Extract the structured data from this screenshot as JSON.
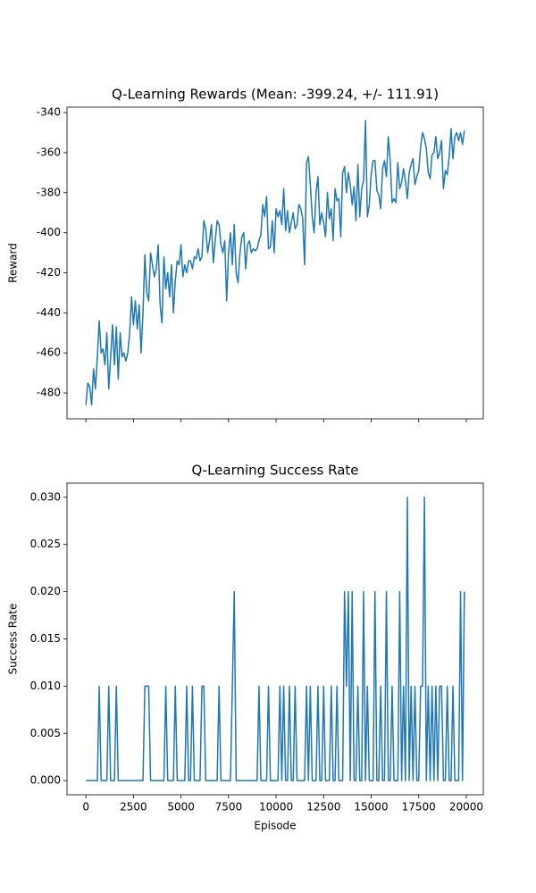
{
  "chart_data": [
    {
      "type": "line",
      "title": "Q-Learning Rewards (Mean: -399.24, +/- 111.91)",
      "ylabel": "Reward",
      "color": "#1f77b4",
      "x": [
        0,
        100,
        200,
        300,
        400,
        500,
        600,
        700,
        800,
        900,
        1000,
        1100,
        1200,
        1300,
        1400,
        1500,
        1600,
        1700,
        1800,
        1900,
        2000,
        2100,
        2200,
        2300,
        2400,
        2500,
        2600,
        2700,
        2800,
        2900,
        3000,
        3100,
        3200,
        3300,
        3400,
        3500,
        3600,
        3700,
        3800,
        3900,
        4000,
        4100,
        4200,
        4300,
        4400,
        4500,
        4600,
        4700,
        4800,
        4900,
        5000,
        5100,
        5200,
        5300,
        5400,
        5500,
        5600,
        5700,
        5800,
        5900,
        6000,
        6100,
        6200,
        6300,
        6400,
        6500,
        6600,
        6700,
        6800,
        6900,
        7000,
        7100,
        7200,
        7300,
        7400,
        7500,
        7600,
        7700,
        7800,
        7900,
        8000,
        8100,
        8200,
        8300,
        8400,
        8500,
        8600,
        8700,
        8800,
        8900,
        9000,
        9100,
        9200,
        9300,
        9400,
        9500,
        9600,
        9700,
        9800,
        9900,
        10000,
        10100,
        10200,
        10300,
        10400,
        10500,
        10600,
        10700,
        10800,
        10900,
        11000,
        11100,
        11200,
        11300,
        11400,
        11500,
        11600,
        11700,
        11800,
        11900,
        12000,
        12100,
        12200,
        12300,
        12400,
        12500,
        12600,
        12700,
        12800,
        12900,
        13000,
        13100,
        13200,
        13300,
        13400,
        13500,
        13600,
        13700,
        13800,
        13900,
        14000,
        14100,
        14200,
        14300,
        14400,
        14500,
        14600,
        14700,
        14800,
        14900,
        15000,
        15100,
        15200,
        15300,
        15400,
        15500,
        15600,
        15700,
        15800,
        15900,
        16000,
        16100,
        16200,
        16300,
        16400,
        16500,
        16600,
        16700,
        16800,
        16900,
        17000,
        17100,
        17200,
        17300,
        17400,
        17500,
        17600,
        17700,
        17800,
        17900,
        18000,
        18100,
        18200,
        18300,
        18400,
        18500,
        18600,
        18700,
        18800,
        18900,
        19000,
        19100,
        19200,
        19300,
        19400,
        19500,
        19600,
        19700,
        19800,
        19900
      ],
      "values": [
        -486,
        -475,
        -477,
        -486,
        -468,
        -478,
        -462,
        -444,
        -460,
        -458,
        -466,
        -450,
        -478,
        -462,
        -446,
        -466,
        -447,
        -473,
        -450,
        -462,
        -460,
        -464,
        -460,
        -450,
        -432,
        -446,
        -434,
        -448,
        -436,
        -460,
        -440,
        -411,
        -430,
        -434,
        -410,
        -416,
        -422,
        -418,
        -406,
        -436,
        -445,
        -412,
        -428,
        -420,
        -432,
        -416,
        -440,
        -424,
        -414,
        -416,
        -406,
        -422,
        -416,
        -420,
        -414,
        -414,
        -418,
        -412,
        -413,
        -408,
        -414,
        -412,
        -394,
        -398,
        -410,
        -404,
        -396,
        -415,
        -404,
        -394,
        -396,
        -406,
        -410,
        -404,
        -434,
        -410,
        -400,
        -416,
        -396,
        -420,
        -425,
        -410,
        -402,
        -400,
        -418,
        -406,
        -404,
        -410,
        -408,
        -409,
        -408,
        -404,
        -401,
        -386,
        -392,
        -382,
        -408,
        -407,
        -394,
        -410,
        -388,
        -392,
        -389,
        -396,
        -378,
        -399,
        -389,
        -400,
        -395,
        -390,
        -398,
        -396,
        -386,
        -388,
        -393,
        -416,
        -365,
        -362,
        -376,
        -392,
        -400,
        -380,
        -372,
        -396,
        -390,
        -395,
        -402,
        -380,
        -393,
        -388,
        -404,
        -378,
        -384,
        -383,
        -402,
        -370,
        -367,
        -380,
        -370,
        -376,
        -386,
        -377,
        -394,
        -366,
        -392,
        -378,
        -374,
        -344,
        -392,
        -386,
        -371,
        -364,
        -364,
        -379,
        -381,
        -388,
        -368,
        -364,
        -372,
        -352,
        -364,
        -385,
        -383,
        -385,
        -365,
        -378,
        -375,
        -368,
        -374,
        -383,
        -370,
        -366,
        -363,
        -376,
        -372,
        -369,
        -357,
        -350,
        -353,
        -358,
        -370,
        -373,
        -361,
        -360,
        -352,
        -363,
        -360,
        -354,
        -378,
        -369,
        -371,
        -362,
        -348,
        -363,
        -352,
        -350,
        -354,
        -350,
        -356,
        -349
      ],
      "xlim": [
        -995,
        20895
      ],
      "xticks": [
        0,
        2500,
        5000,
        7500,
        10000,
        12500,
        15000,
        17500,
        20000
      ],
      "ylim": [
        -492.9,
        -337.3
      ],
      "yticks": [
        -480,
        -460,
        -440,
        -420,
        -400,
        -380,
        -360,
        -340
      ]
    },
    {
      "type": "line",
      "title": "Q-Learning Success Rate",
      "xlabel": "Episode",
      "ylabel": "Success Rate",
      "color": "#1f77b4",
      "x": [
        0,
        100,
        200,
        300,
        400,
        500,
        600,
        700,
        800,
        900,
        1000,
        1100,
        1200,
        1300,
        1400,
        1500,
        1600,
        1700,
        1800,
        1900,
        2000,
        2100,
        2200,
        2300,
        2400,
        2500,
        2600,
        2700,
        2800,
        2900,
        3000,
        3100,
        3200,
        3300,
        3400,
        3500,
        3600,
        3700,
        3800,
        3900,
        4000,
        4100,
        4200,
        4300,
        4400,
        4500,
        4600,
        4700,
        4800,
        4900,
        5000,
        5100,
        5200,
        5300,
        5400,
        5500,
        5600,
        5700,
        5800,
        5900,
        6000,
        6100,
        6200,
        6300,
        6400,
        6500,
        6600,
        6700,
        6800,
        6900,
        7000,
        7100,
        7200,
        7300,
        7400,
        7500,
        7600,
        7700,
        7800,
        7900,
        8000,
        8100,
        8200,
        8300,
        8400,
        8500,
        8600,
        8700,
        8800,
        8900,
        9000,
        9100,
        9200,
        9300,
        9400,
        9500,
        9600,
        9700,
        9800,
        9900,
        10000,
        10100,
        10200,
        10300,
        10400,
        10500,
        10600,
        10700,
        10800,
        10900,
        11000,
        11100,
        11200,
        11300,
        11400,
        11500,
        11600,
        11700,
        11800,
        11900,
        12000,
        12100,
        12200,
        12300,
        12400,
        12500,
        12600,
        12700,
        12800,
        12900,
        13000,
        13100,
        13200,
        13300,
        13400,
        13500,
        13600,
        13700,
        13800,
        13900,
        14000,
        14100,
        14200,
        14300,
        14400,
        14500,
        14600,
        14700,
        14800,
        14900,
        15000,
        15100,
        15200,
        15300,
        15400,
        15500,
        15600,
        15700,
        15800,
        15900,
        16000,
        16100,
        16200,
        16300,
        16400,
        16500,
        16600,
        16700,
        16800,
        16900,
        17000,
        17100,
        17200,
        17300,
        17400,
        17500,
        17600,
        17700,
        17800,
        17900,
        18000,
        18100,
        18200,
        18300,
        18400,
        18500,
        18600,
        18700,
        18800,
        18900,
        19000,
        19100,
        19200,
        19300,
        19400,
        19500,
        19600,
        19700,
        19800,
        19900
      ],
      "values": [
        0,
        0,
        0,
        0,
        0,
        0,
        0,
        0.01,
        0,
        0,
        0,
        0,
        0.01,
        0,
        0,
        0,
        0.01,
        0,
        0,
        0,
        0,
        0,
        0,
        0,
        0,
        0,
        0,
        0,
        0,
        0,
        0,
        0.01,
        0.01,
        0.01,
        0,
        0,
        0,
        0,
        0,
        0,
        0,
        0,
        0.01,
        0,
        0,
        0,
        0,
        0.01,
        0,
        0,
        0,
        0,
        0,
        0.01,
        0,
        0,
        0.01,
        0,
        0,
        0,
        0,
        0.01,
        0.01,
        0,
        0,
        0,
        0,
        0,
        0,
        0,
        0.01,
        0,
        0,
        0,
        0,
        0,
        0,
        0.01,
        0.02,
        0,
        0,
        0,
        0,
        0,
        0,
        0,
        0,
        0,
        0,
        0,
        0,
        0.01,
        0,
        0,
        0,
        0,
        0.01,
        0,
        0,
        0,
        0,
        0,
        0.01,
        0,
        0.01,
        0,
        0,
        0.01,
        0,
        0,
        0.01,
        0,
        0,
        0,
        0,
        0,
        0.01,
        0,
        0.01,
        0,
        0,
        0,
        0.01,
        0,
        0,
        0.01,
        0,
        0,
        0,
        0.01,
        0,
        0,
        0.01,
        0,
        0,
        0,
        0.02,
        0.01,
        0.02,
        0,
        0.02,
        0,
        0,
        0.01,
        0,
        0,
        0.02,
        0,
        0.01,
        0,
        0,
        0,
        0.02,
        0,
        0,
        0.01,
        0,
        0,
        0.02,
        0,
        0,
        0.01,
        0,
        0,
        0,
        0.02,
        0,
        0.01,
        0,
        0.03,
        0,
        0.01,
        0,
        0.01,
        0,
        0,
        0.01,
        0.01,
        0.03,
        0,
        0.01,
        0,
        0.01,
        0,
        0.01,
        0,
        0.01,
        0.01,
        0,
        0,
        0.01,
        0,
        0,
        0.01,
        0,
        0,
        0,
        0.02,
        0,
        0.02
      ],
      "xlim": [
        -995,
        20895
      ],
      "xticks": [
        0,
        2500,
        5000,
        7500,
        10000,
        12500,
        15000,
        17500,
        20000
      ],
      "ylim": [
        -0.0015,
        0.0315
      ],
      "yticks": [
        {
          "value": 0,
          "label": "0.000"
        },
        {
          "value": 0.005,
          "label": "0.005"
        },
        {
          "value": 0.01,
          "label": "0.010"
        },
        {
          "value": 0.015,
          "label": "0.015"
        },
        {
          "value": 0.02,
          "label": "0.020"
        },
        {
          "value": 0.025,
          "label": "0.025"
        },
        {
          "value": 0.03,
          "label": "0.030"
        }
      ]
    }
  ]
}
